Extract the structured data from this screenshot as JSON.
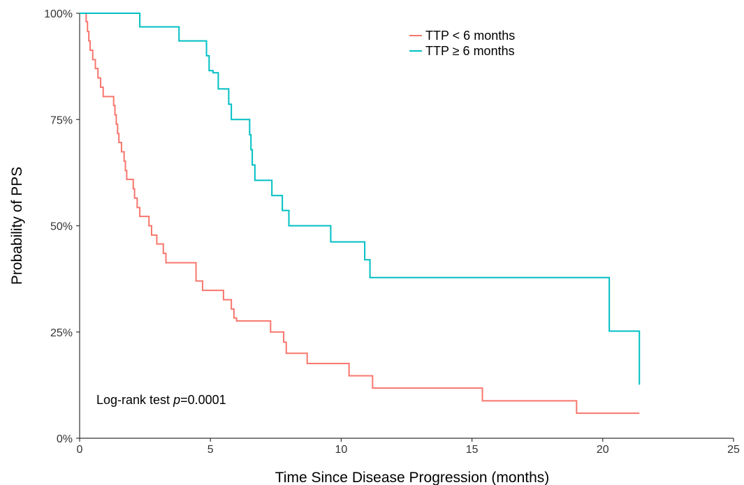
{
  "chart_data": {
    "type": "line",
    "subtype": "kaplan-meier step curve",
    "title": "",
    "xlabel": "Time Since Disease Progression (months)",
    "ylabel": "Probability of PPS",
    "xlim": [
      0,
      25
    ],
    "ylim": [
      0,
      1
    ],
    "xticks": [
      0,
      5,
      10,
      15,
      20,
      25
    ],
    "yticks": [
      0,
      0.25,
      0.5,
      0.75,
      1.0
    ],
    "ytick_labels": [
      "0%",
      "25%",
      "50%",
      "75%",
      "100%"
    ],
    "grid": false,
    "legend_position": "top-right",
    "annotation": {
      "prefix": "Log-rank test ",
      "italic": "p",
      "suffix": "=0.0001"
    },
    "series": [
      {
        "name": "TTP < 6 months",
        "color": "#F8766D",
        "x": [
          0,
          0.25,
          0.3,
          0.35,
          0.4,
          0.5,
          0.6,
          0.7,
          0.8,
          0.9,
          1.3,
          1.35,
          1.4,
          1.45,
          1.5,
          1.6,
          1.7,
          1.75,
          1.8,
          2.05,
          2.1,
          2.2,
          2.3,
          2.65,
          2.75,
          2.95,
          3.2,
          3.3,
          4.45,
          4.7,
          5.5,
          5.8,
          5.9,
          6.0,
          7.3,
          7.8,
          7.9,
          8.7,
          10.3,
          11.2,
          15.4,
          19.0,
          21.4
        ],
        "y": [
          1.0,
          0.98,
          0.957,
          0.935,
          0.913,
          0.891,
          0.87,
          0.848,
          0.826,
          0.804,
          0.783,
          0.761,
          0.739,
          0.717,
          0.696,
          0.674,
          0.652,
          0.63,
          0.609,
          0.587,
          0.565,
          0.543,
          0.522,
          0.5,
          0.478,
          0.457,
          0.435,
          0.413,
          0.37,
          0.348,
          0.326,
          0.304,
          0.283,
          0.276,
          0.25,
          0.226,
          0.2,
          0.176,
          0.147,
          0.118,
          0.088,
          0.059,
          0.059
        ]
      },
      {
        "name": "TTP ≥ 6 months",
        "color": "#00BFC4",
        "x": [
          0,
          2.3,
          3.8,
          4.85,
          4.95,
          5.1,
          5.3,
          5.7,
          5.8,
          6.5,
          6.55,
          6.6,
          6.7,
          6.85,
          7.35,
          7.75,
          8.0,
          9.6,
          10.9,
          11.1,
          20.25,
          21.4,
          21.4
        ],
        "y": [
          1.0,
          0.968,
          0.935,
          0.9,
          0.865,
          0.86,
          0.822,
          0.786,
          0.75,
          0.714,
          0.679,
          0.643,
          0.607,
          0.607,
          0.571,
          0.536,
          0.5,
          0.462,
          0.42,
          0.378,
          0.252,
          0.126,
          0.126
        ]
      }
    ]
  }
}
